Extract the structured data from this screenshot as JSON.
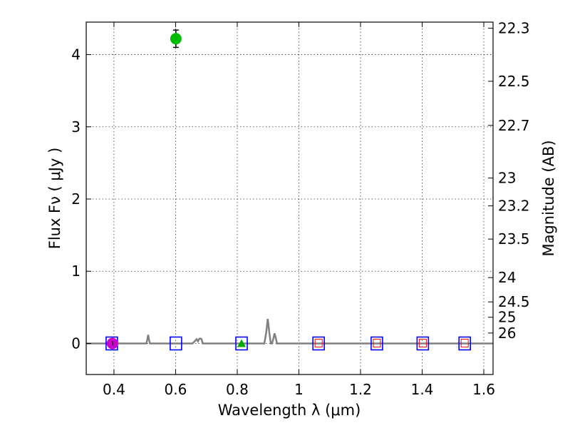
{
  "chart_data": {
    "type": "scatter",
    "xlabel": "Wavelength  λ (μm)",
    "ylabel": "Flux  Fν  ( μJy )",
    "ylabel_right": "Magnitude (AB)",
    "xlim": [
      0.31,
      1.63
    ],
    "ylim": [
      -0.43,
      4.45
    ],
    "x_ticks": [
      0.4,
      0.6,
      0.8,
      1.0,
      1.2,
      1.4,
      1.6
    ],
    "x_tick_labels": [
      "0.4",
      "0.6",
      "0.8",
      "1",
      "1.2",
      "1.4",
      "1.6"
    ],
    "y_ticks": [
      0,
      1,
      2,
      3,
      4
    ],
    "y_tick_labels": [
      "0",
      "1",
      "2",
      "3",
      "4"
    ],
    "right_ticks": [
      {
        "label": "22.3",
        "flux": 4.3652
      },
      {
        "label": "22.5",
        "flux": 3.6308
      },
      {
        "label": "22.7",
        "flux": 3.02
      },
      {
        "label": "23",
        "flux": 2.2909
      },
      {
        "label": "23.2",
        "flux": 1.9055
      },
      {
        "label": "23.5",
        "flux": 1.4454
      },
      {
        "label": "24",
        "flux": 0.912
      },
      {
        "label": "24.5",
        "flux": 0.5754
      },
      {
        "label": "25",
        "flux": 0.3631
      },
      {
        "label": "26",
        "flux": 0.1445
      }
    ],
    "series": [
      {
        "name": "model spectrum",
        "type": "line",
        "color": "#808080",
        "points": [
          [
            0.31,
            0.0
          ],
          [
            0.505,
            0.0
          ],
          [
            0.508,
            0.05
          ],
          [
            0.511,
            0.12
          ],
          [
            0.514,
            0.05
          ],
          [
            0.517,
            0.0
          ],
          [
            0.655,
            0.0
          ],
          [
            0.662,
            0.03
          ],
          [
            0.668,
            0.06
          ],
          [
            0.673,
            0.03
          ],
          [
            0.676,
            0.06
          ],
          [
            0.68,
            0.07
          ],
          [
            0.684,
            0.06
          ],
          [
            0.688,
            0.0
          ],
          [
            0.888,
            0.0
          ],
          [
            0.894,
            0.15
          ],
          [
            0.899,
            0.34
          ],
          [
            0.904,
            0.15
          ],
          [
            0.909,
            0.0
          ],
          [
            0.913,
            0.0
          ],
          [
            0.918,
            0.08
          ],
          [
            0.921,
            0.14
          ],
          [
            0.925,
            0.08
          ],
          [
            0.929,
            0.0
          ],
          [
            1.63,
            0.0
          ]
        ]
      },
      {
        "name": "photometry (green)",
        "type": "scatter",
        "color": "#00bb00",
        "points": [
          {
            "x": 0.601,
            "y": 4.22,
            "err": 0.12
          }
        ]
      },
      {
        "name": "photometry (magenta)",
        "type": "scatter",
        "color": "#cc00cc",
        "points": [
          {
            "x": 0.395,
            "y": 0.0,
            "err": 0.03
          }
        ]
      },
      {
        "name": "upper limit (green triangle)",
        "type": "scatter",
        "color": "#00aa00",
        "points": [
          {
            "x": 0.814,
            "y": 0.0
          }
        ]
      },
      {
        "name": "model bands (blue squares)",
        "type": "scatter",
        "color": "#0000ff",
        "points": [
          {
            "x": 0.393,
            "y": 0.0
          },
          {
            "x": 0.601,
            "y": 0.0
          },
          {
            "x": 0.814,
            "y": 0.0
          },
          {
            "x": 1.064,
            "y": 0.0
          },
          {
            "x": 1.253,
            "y": 0.0
          },
          {
            "x": 1.402,
            "y": 0.0
          },
          {
            "x": 1.538,
            "y": 0.0
          }
        ]
      },
      {
        "name": "detections (red small squares)",
        "type": "scatter",
        "color": "#ff0000",
        "points": [
          {
            "x": 1.064,
            "y": 0.0
          },
          {
            "x": 1.253,
            "y": 0.0
          },
          {
            "x": 1.402,
            "y": 0.0
          },
          {
            "x": 1.538,
            "y": 0.0
          }
        ]
      }
    ]
  }
}
